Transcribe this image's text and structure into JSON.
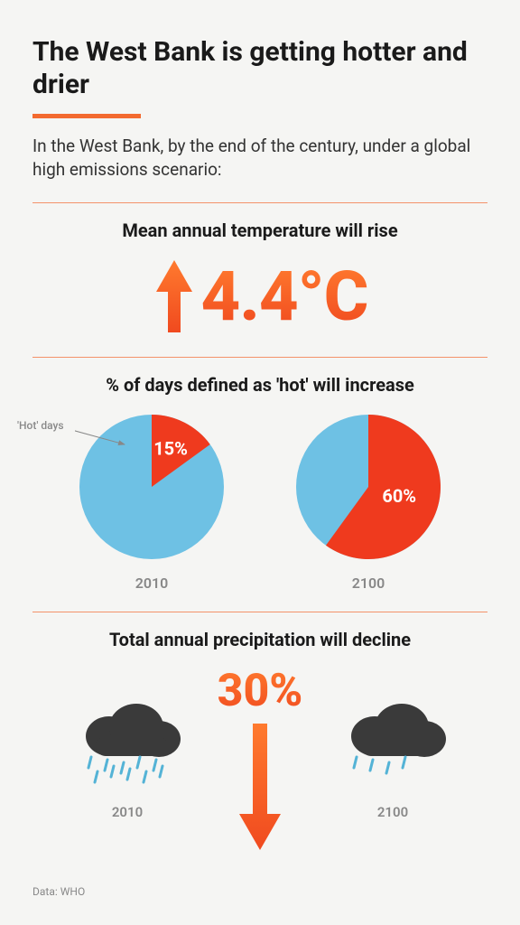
{
  "title": "The West Bank is getting hotter and drier",
  "subtitle": "In the West Bank, by the end of the century, under a global high emissions scenario:",
  "colors": {
    "accent_light": "#ff7a2e",
    "accent_dark": "#f04a1f",
    "separator": "#f36a2f",
    "pie_bg": "#6ec1e4",
    "pie_fg": "#ef3a1e",
    "cloud": "#3a3a3a",
    "rain": "#54b3d6",
    "text_gray": "#888888",
    "bg": "#f5f5f3"
  },
  "temperature": {
    "title": "Mean annual temperature will rise",
    "value": "4.4°C",
    "value_fontsize": 76,
    "arrow_direction": "up"
  },
  "hotdays": {
    "title": "% of days defined as 'hot' will increase",
    "legend_label": "'Hot' days",
    "chart_type": "pie",
    "pie_radius": 80,
    "pies": [
      {
        "year": "2010",
        "pct": 15,
        "label": "15%"
      },
      {
        "year": "2100",
        "pct": 60,
        "label": "60%"
      }
    ]
  },
  "precip": {
    "title": "Total annual precipitation will decline",
    "value": "30%",
    "arrow_direction": "down",
    "clouds": [
      {
        "year": "2010",
        "rain_density": 10
      },
      {
        "year": "2100",
        "rain_density": 4
      }
    ]
  },
  "source_label": "Data: WHO"
}
